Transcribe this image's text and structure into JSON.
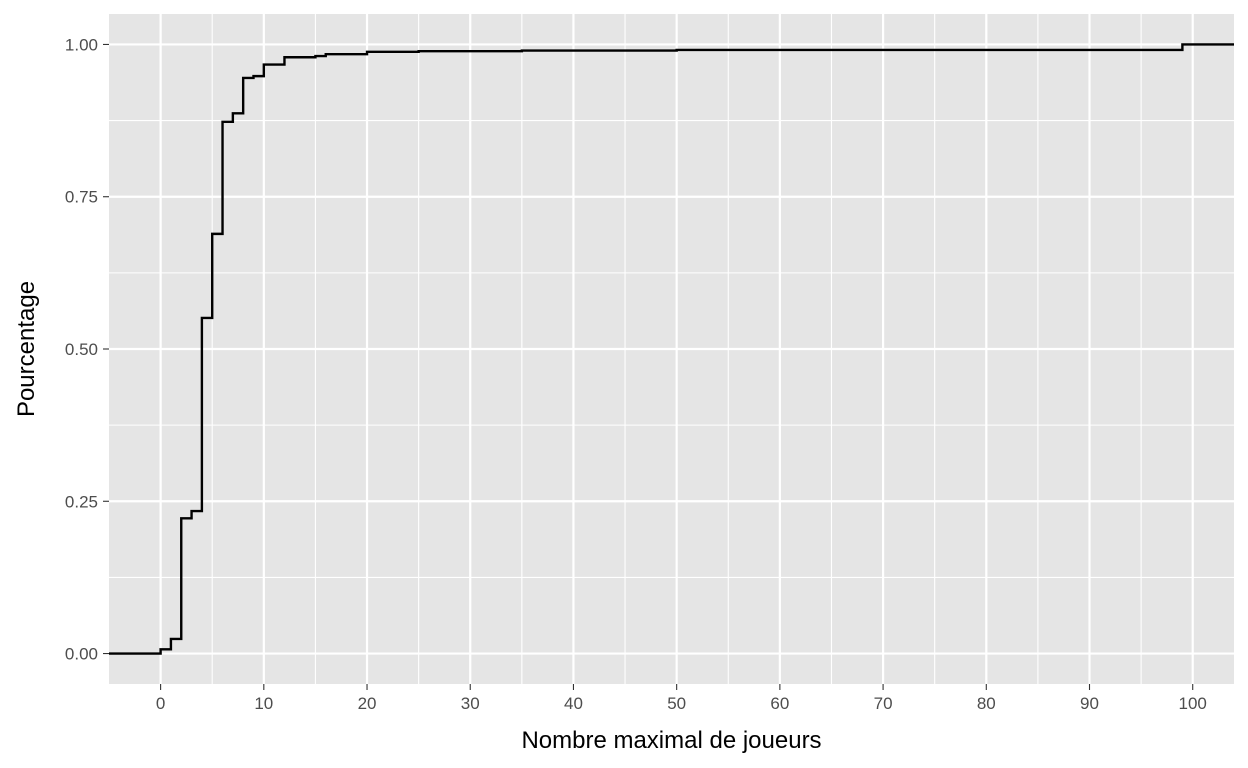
{
  "chart_data": {
    "type": "line",
    "title": "",
    "xlabel": "Nombre maximal de joueurs",
    "ylabel": "Pourcentage",
    "xlim": [
      -5,
      104
    ],
    "ylim": [
      -0.05,
      1.05
    ],
    "x_ticks": [
      0,
      10,
      20,
      30,
      40,
      50,
      60,
      70,
      80,
      90,
      100
    ],
    "x_tick_labels": [
      "0",
      "10",
      "20",
      "30",
      "40",
      "50",
      "60",
      "70",
      "80",
      "90",
      "100"
    ],
    "y_ticks": [
      0,
      0.25,
      0.5,
      0.75,
      1
    ],
    "y_tick_labels": [
      "0.00",
      "0.25",
      "0.50",
      "0.75",
      "1.00"
    ],
    "grid": true,
    "step": true,
    "colors": {
      "panel": "#e5e5e5",
      "grid": "#ffffff",
      "line": "#000000"
    },
    "series": [
      {
        "x": [
          -5,
          0,
          1,
          2,
          3,
          4,
          5,
          6,
          7,
          8,
          9,
          10,
          12,
          15,
          16,
          20,
          25,
          35,
          50,
          99,
          104
        ],
        "values": [
          0.0,
          0.007,
          0.024,
          0.222,
          0.234,
          0.551,
          0.689,
          0.873,
          0.887,
          0.945,
          0.948,
          0.967,
          0.979,
          0.981,
          0.984,
          0.988,
          0.989,
          0.99,
          0.991,
          1.0,
          1.0
        ]
      }
    ]
  }
}
